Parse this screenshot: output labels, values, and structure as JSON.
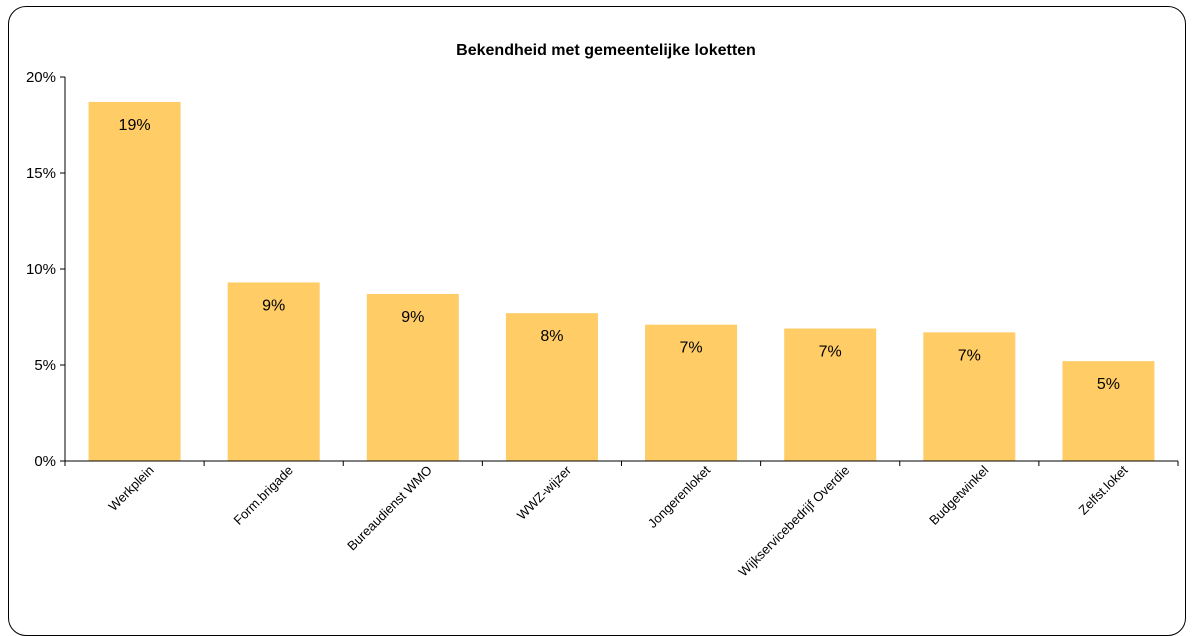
{
  "chart_data": {
    "type": "bar",
    "title": "Bekendheid met gemeentelijke loketten",
    "xlabel": "",
    "ylabel": "",
    "categories": [
      "Werkplein",
      "Form.brigade",
      "Bureaudienst WMO",
      "WWZ-wijzer",
      "Jongerenloket",
      "Wijkservicebedrijf Overdie",
      "Budgetwinkel",
      "Zelfst.loket"
    ],
    "values": [
      18.7,
      9.3,
      8.7,
      7.7,
      7.1,
      6.9,
      6.7,
      5.2
    ],
    "data_labels": [
      "19%",
      "9%",
      "9%",
      "8%",
      "7%",
      "7%",
      "7%",
      "5%"
    ],
    "ylim": [
      0,
      20
    ],
    "yticks": [
      0,
      5,
      10,
      15,
      20
    ],
    "ytick_labels": [
      "0%",
      "5%",
      "10%",
      "15%",
      "20%"
    ],
    "grid": false,
    "bar_color": "#FFCC66"
  }
}
